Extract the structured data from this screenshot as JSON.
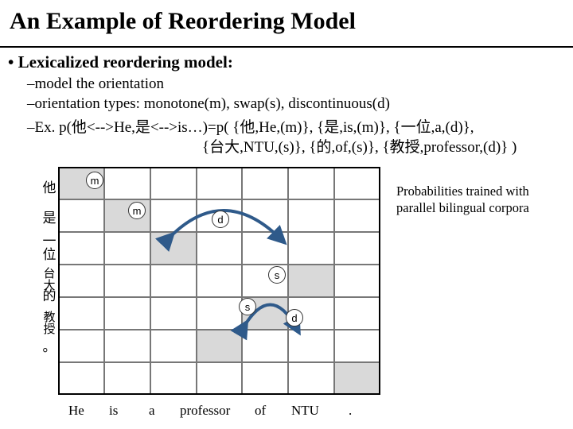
{
  "title": "An Example of Reordering Model",
  "heading": "Lexicalized reordering model:",
  "lines": [
    "–model the orientation",
    "–orientation types: monotone(m), swap(s), discontinuous(d)",
    "–Ex. p(他<-->He,是<-->is…)=p( {他,He,(m)}, {是,is,(m)}, {一位,a,(d)},",
    "{台大,NTU,(s)}, {的,of,(s)}, {教授,professor,(d)} )"
  ],
  "note": [
    "Probabilities trained with",
    "parallel bilingual corpora"
  ],
  "rows": [
    "他",
    "是",
    "一位",
    "台大",
    "的",
    "教授",
    "。"
  ],
  "columns": [
    "He",
    "is",
    "a",
    "professor",
    "of",
    "NTU",
    "."
  ],
  "alignment": [
    [
      0,
      0
    ],
    [
      1,
      1
    ],
    [
      2,
      2
    ],
    [
      5,
      3
    ],
    [
      4,
      4
    ],
    [
      3,
      5
    ],
    [
      6,
      6
    ]
  ],
  "orientations": [
    "m",
    "m",
    "d",
    "s",
    "s",
    "d"
  ]
}
